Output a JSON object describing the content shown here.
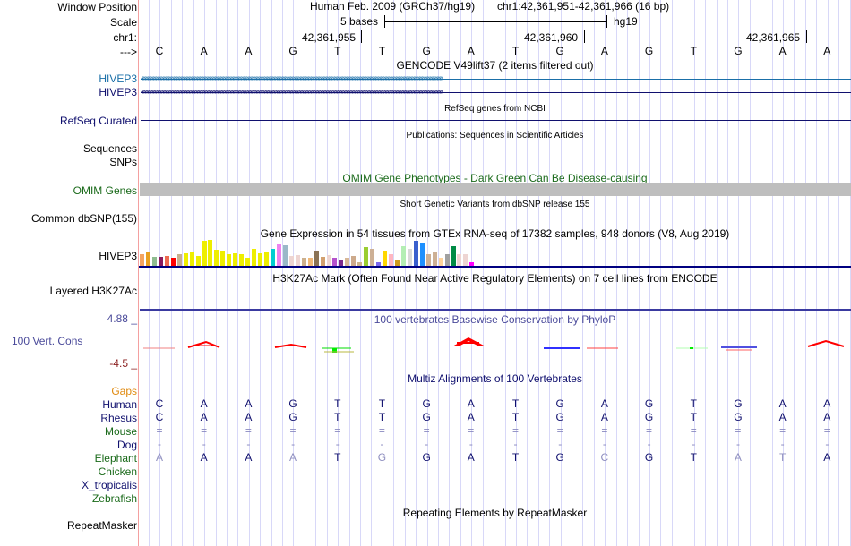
{
  "header": {
    "window_position_label": "Window Position",
    "scale_label": "Scale",
    "chr_label": "chr1:",
    "strand_label": "--->",
    "assembly": "Human Feb. 2009 (GRCh37/hg19)",
    "position": "chr1:42,361,951-42,361,966 (16 bp)",
    "scale_text": "5 bases",
    "scale_db": "hg19",
    "ruler_ticks": [
      "42,361,955",
      "42,361,960",
      "42,361,965"
    ],
    "bases": [
      "C",
      "A",
      "A",
      "G",
      "T",
      "T",
      "G",
      "A",
      "T",
      "G",
      "A",
      "G",
      "T",
      "G",
      "A",
      "A"
    ]
  },
  "tracks": {
    "gencode": {
      "title": "GENCODE V49lift37 (2 items filtered out)",
      "items": [
        {
          "label": "HIVEP3",
          "color": "#1a6fa8"
        },
        {
          "label": "HIVEP3",
          "color": "#10106e"
        }
      ]
    },
    "refseq": {
      "title": "RefSeq genes from NCBI",
      "label": "RefSeq Curated",
      "color": "#10106e"
    },
    "publications": {
      "title": "Publications: Sequences in Scientific Articles",
      "labels": [
        "Sequences",
        "SNPs"
      ]
    },
    "omim": {
      "title": "OMIM Gene Phenotypes - Dark Green Can Be Disease-causing",
      "label": "OMIM Genes",
      "color": "#1a6a1a",
      "bar_color": "#bebebe"
    },
    "dbsnp": {
      "title": "Short Genetic Variants from dbSNP release 155",
      "label": "Common dbSNP(155)"
    },
    "gtex": {
      "title": "Gene Expression in 54 tissues from GTEx RNA-seq of 17382 samples, 948 donors (V8, Aug 2019)",
      "label": "HIVEP3",
      "bar_colors": [
        "#f4a460",
        "#e8a020",
        "#8fbc8f",
        "#8b1a5c",
        "#ee6a50",
        "#ff0000",
        "#c8b090",
        "#eeee00",
        "#eeee00",
        "#eeee00",
        "#eeee00",
        "#eeee00",
        "#eeee00",
        "#eeee00",
        "#eeee00",
        "#eeee00",
        "#eeee00",
        "#eeee00",
        "#eeee00",
        "#eeee00",
        "#eeee00",
        "#00ced1",
        "#ee82ee",
        "#9ab8c8",
        "#eed5d2",
        "#eed5d2",
        "#cdb08c",
        "#f0b878",
        "#8b7355",
        "#d2a070",
        "#eed5d2",
        "#b452cd",
        "#7d2a8c",
        "#d8b898",
        "#cdaa8c",
        "#cdb38b",
        "#9acd32",
        "#cdb095",
        "#7b68ee",
        "#ffd700",
        "#ffb6c1",
        "#cd9b1d",
        "#b4eeb4",
        "#d9d9d9",
        "#3a5fcd",
        "#1e90ff",
        "#cdb095",
        "#cdb095",
        "#ffd39b",
        "#a0a0a0",
        "#008b45",
        "#eed5d2",
        "#eed5d2",
        "#ff00ff"
      ],
      "bar_values": [
        0.42,
        0.48,
        0.32,
        0.32,
        0.35,
        0.3,
        0.4,
        0.45,
        0.5,
        0.35,
        0.85,
        0.88,
        0.55,
        0.52,
        0.4,
        0.45,
        0.4,
        0.3,
        0.6,
        0.45,
        0.5,
        0.58,
        0.75,
        0.72,
        0.35,
        0.38,
        0.3,
        0.3,
        0.52,
        0.32,
        0.38,
        0.28,
        0.2,
        0.28,
        0.35,
        0.15,
        0.65,
        0.58,
        0.15,
        0.52,
        0.4,
        0.2,
        0.68,
        0.58,
        0.85,
        0.8,
        0.42,
        0.5,
        0.3,
        0.4,
        0.68,
        0.42,
        0.42,
        0.15
      ]
    },
    "h3k27ac": {
      "title": "H3K27Ac Mark (Often Found Near Active Regulatory Elements) on 7 cell lines from ENCODE",
      "label": "Layered H3K27Ac"
    },
    "conservation": {
      "title": "100 vertebrates Basewise Conservation by PhyloP",
      "label": "100 Vert. Cons",
      "max": "4.88 _",
      "min": "-4.5 _",
      "label_color": "#4a4a9a",
      "min_color": "#8b2020"
    },
    "multiz": {
      "title": "Multiz Alignments of 100 Vertebrates",
      "gaps_label": "Gaps",
      "species": [
        {
          "name": "Human",
          "color": "#10106e",
          "seq": [
            "C",
            "A",
            "A",
            "G",
            "T",
            "T",
            "G",
            "A",
            "T",
            "G",
            "A",
            "G",
            "T",
            "G",
            "A",
            "A"
          ]
        },
        {
          "name": "Rhesus",
          "color": "#10106e",
          "seq": [
            "C",
            "A",
            "A",
            "G",
            "T",
            "T",
            "G",
            "A",
            "T",
            "G",
            "A",
            "G",
            "T",
            "G",
            "A",
            "A"
          ]
        },
        {
          "name": "Mouse",
          "color": "#1a6a1a",
          "seq": [
            "=",
            "=",
            "=",
            "=",
            "=",
            "=",
            "=",
            "=",
            "=",
            "=",
            "=",
            "=",
            "=",
            "=",
            "=",
            "="
          ]
        },
        {
          "name": "Dog",
          "color": "#10106e",
          "seq": [
            "-",
            "-",
            "-",
            "-",
            "-",
            "-",
            "-",
            "-",
            "-",
            "-",
            "-",
            "-",
            "-",
            "-",
            "-",
            "-"
          ]
        },
        {
          "name": "Elephant",
          "color": "#1a6a1a",
          "seq": [
            "A",
            "A",
            "A",
            "A",
            "T",
            "G",
            "G",
            "A",
            "T",
            "G",
            "C",
            "G",
            "T",
            "A",
            "T",
            "A"
          ],
          "faint": [
            true,
            false,
            false,
            true,
            false,
            true,
            false,
            false,
            false,
            false,
            true,
            false,
            false,
            true,
            true,
            false
          ]
        },
        {
          "name": "Chicken",
          "color": "#1a6a1a",
          "seq": []
        },
        {
          "name": "X_tropicalis",
          "color": "#10106e",
          "seq": []
        },
        {
          "name": "Zebrafish",
          "color": "#1a6a1a",
          "seq": []
        }
      ]
    },
    "repeatmasker": {
      "title": "Repeating Elements by RepeatMasker",
      "label": "RepeatMasker"
    }
  }
}
